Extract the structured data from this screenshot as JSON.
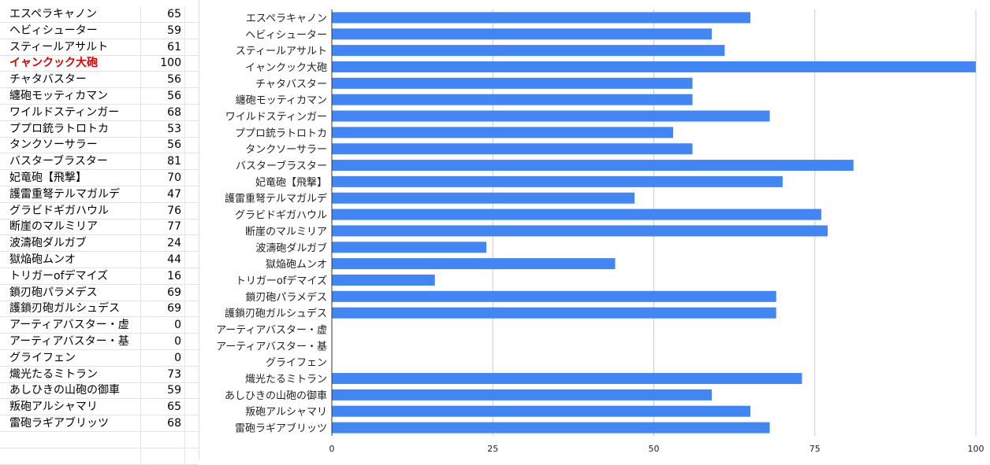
{
  "sheet": {
    "rows": [
      {
        "name": "エスペラキャノン",
        "value": "65"
      },
      {
        "name": "ヘビィシューター",
        "value": "59"
      },
      {
        "name": "スティールアサルト",
        "value": "61"
      },
      {
        "name": "イャンクック大砲",
        "value": "100",
        "highlight": true
      },
      {
        "name": "チャタバスター",
        "value": "56"
      },
      {
        "name": "纏砲モッティカマン",
        "value": "56"
      },
      {
        "name": "ワイルドスティンガー",
        "value": "68"
      },
      {
        "name": "ププロ銃ラトロトカ",
        "value": "53"
      },
      {
        "name": "タンクソーサラー",
        "value": "56"
      },
      {
        "name": "バスターブラスター",
        "value": "81"
      },
      {
        "name": "妃竜砲【飛撃】",
        "value": "70"
      },
      {
        "name": "護雷重弩テルマガルデ",
        "value": "47"
      },
      {
        "name": "グラビドギガハウル",
        "value": "76"
      },
      {
        "name": "断崖のマルミリア",
        "value": "77"
      },
      {
        "name": "波濤砲ダルガブ",
        "value": "24"
      },
      {
        "name": "獄焔砲ムンオ",
        "value": "44"
      },
      {
        "name": "トリガーofデマイズ",
        "value": "16"
      },
      {
        "name": "鎖刃砲パラメデス",
        "value": "69"
      },
      {
        "name": "護鎖刃砲ガルシュデス",
        "value": "69"
      },
      {
        "name": "アーティアバスター・虚",
        "value": "0"
      },
      {
        "name": "アーティアバスター・基",
        "value": "0"
      },
      {
        "name": "グライフェン",
        "value": "0"
      },
      {
        "name": "熾光たるミトラン",
        "value": "73"
      },
      {
        "name": "あしひきの山砲の御車",
        "value": "59"
      },
      {
        "name": "叛砲アルシャマリ",
        "value": "65"
      },
      {
        "name": "雷砲ラギアブリッツ",
        "value": "68"
      }
    ]
  },
  "chart_data": {
    "type": "bar",
    "orientation": "horizontal",
    "categories": [
      "エスペラキャノン",
      "ヘビィシューター",
      "スティールアサルト",
      "イャンクック大砲",
      "チャタバスター",
      "纏砲モッティカマン",
      "ワイルドスティンガー",
      "ププロ銃ラトロトカ",
      "タンクソーサラー",
      "バスターブラスター",
      "妃竜砲【飛撃】",
      "護雷重弩テルマガルデ",
      "グラビドギガハウル",
      "断崖のマルミリア",
      "波濤砲ダルガブ",
      "獄焔砲ムンオ",
      "トリガーofデマイズ",
      "鎖刃砲パラメデス",
      "護鎖刃砲ガルシュデス",
      "アーティアバスター・虚",
      "アーティアバスター・基",
      "グライフェン",
      "熾光たるミトラン",
      "あしひきの山砲の御車",
      "叛砲アルシャマリ",
      "雷砲ラギアブリッツ"
    ],
    "values": [
      65,
      59,
      61,
      100,
      56,
      56,
      68,
      53,
      56,
      81,
      70,
      47,
      76,
      77,
      24,
      44,
      16,
      69,
      69,
      0,
      0,
      0,
      73,
      59,
      65,
      68
    ],
    "xlim": [
      0,
      100
    ],
    "xticks": [
      0,
      25,
      50,
      75,
      100
    ],
    "grid": true,
    "bar_color": "#4285f4",
    "grid_color": "#cccccc",
    "axis_color": "#333333"
  }
}
